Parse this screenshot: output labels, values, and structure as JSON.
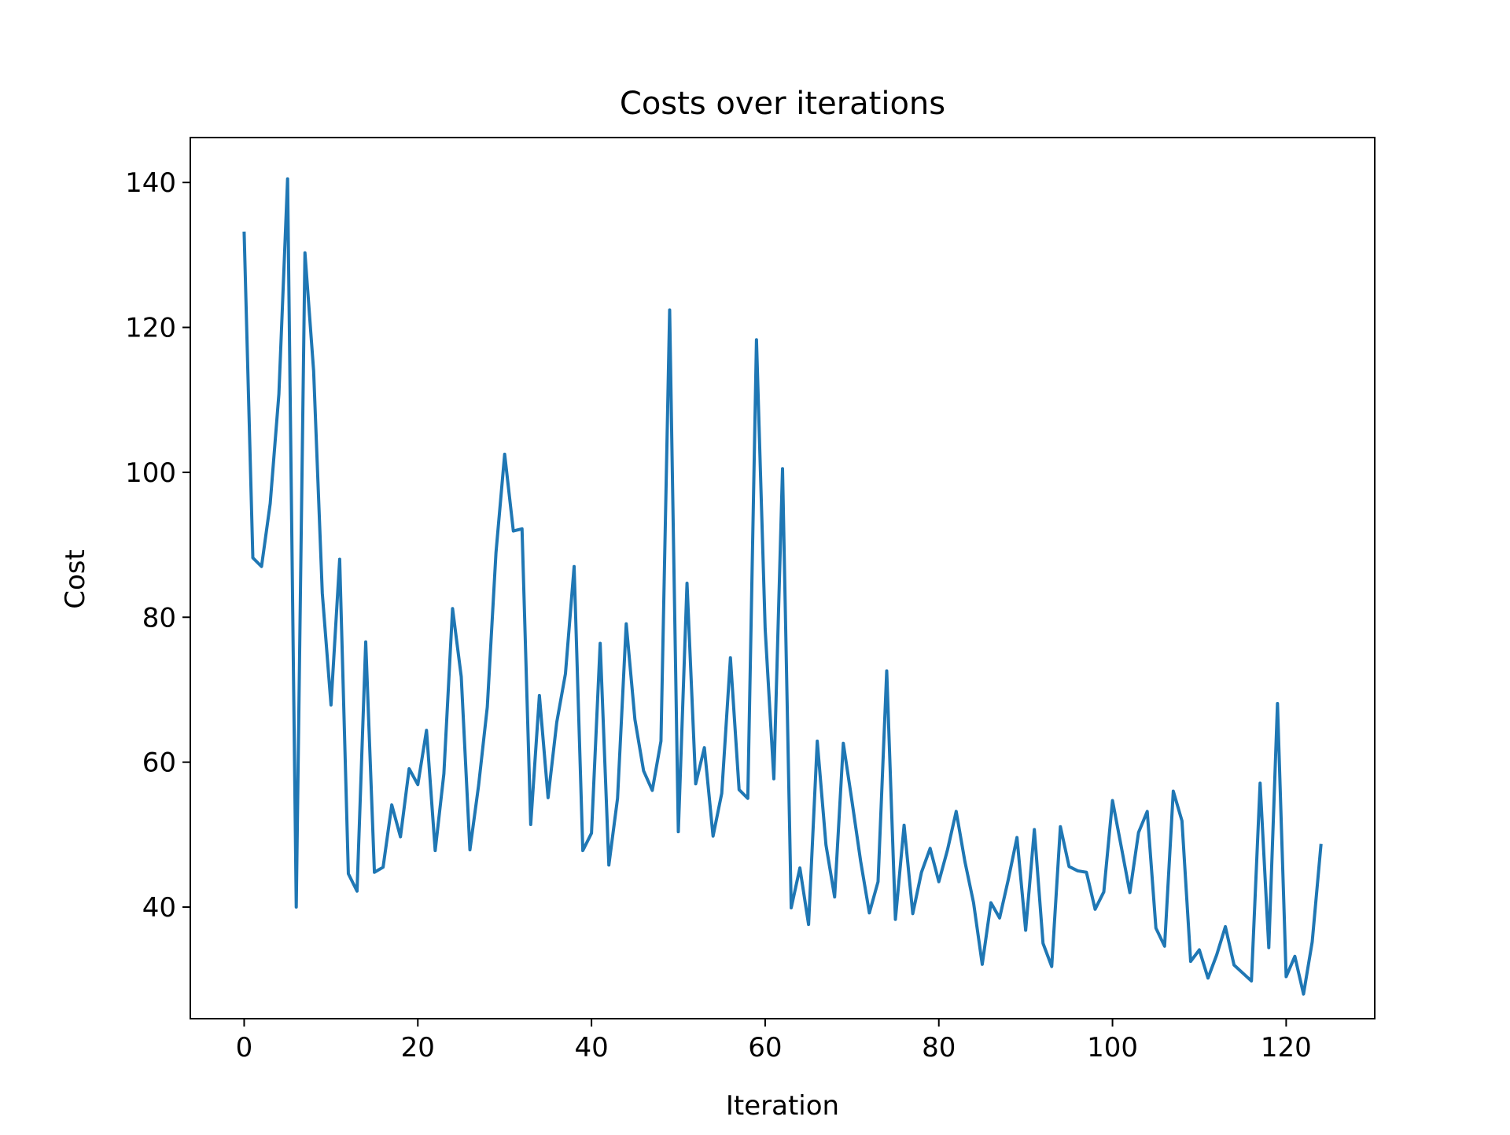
{
  "chart_data": {
    "type": "line",
    "title": "Costs over iterations",
    "xlabel": "Iteration",
    "ylabel": "Cost",
    "xlim": [
      -6.2,
      130.2
    ],
    "ylim": [
      24.6,
      146.2
    ],
    "xticks": [
      0,
      20,
      40,
      60,
      80,
      100,
      120
    ],
    "yticks": [
      40,
      60,
      80,
      100,
      120,
      140
    ],
    "grid": false,
    "legend": "none",
    "series": [
      {
        "color": "#1f77b4",
        "x": [
          0,
          1,
          2,
          3,
          4,
          5,
          6,
          7,
          8,
          9,
          10,
          11,
          12,
          13,
          14,
          15,
          16,
          17,
          18,
          19,
          20,
          21,
          22,
          23,
          24,
          25,
          26,
          27,
          28,
          29,
          30,
          31,
          32,
          33,
          34,
          35,
          36,
          37,
          38,
          39,
          40,
          41,
          42,
          43,
          44,
          45,
          46,
          47,
          48,
          49,
          50,
          51,
          52,
          53,
          54,
          55,
          56,
          57,
          58,
          59,
          60,
          61,
          62,
          63,
          64,
          65,
          66,
          67,
          68,
          69,
          70,
          71,
          72,
          73,
          74,
          75,
          76,
          77,
          78,
          79,
          80,
          81,
          82,
          83,
          84,
          85,
          86,
          87,
          88,
          89,
          90,
          91,
          92,
          93,
          94,
          95,
          96,
          97,
          98,
          99,
          100,
          101,
          102,
          103,
          104,
          105,
          106,
          107,
          108,
          109,
          110,
          111,
          112,
          113,
          114,
          115,
          116,
          117,
          118,
          119,
          120,
          121,
          122,
          123,
          124
        ],
        "values": [
          133,
          88.2,
          87,
          95.7,
          110.8,
          140.5,
          40,
          130.3,
          114,
          83.3,
          67.9,
          88,
          44.6,
          42.2,
          76.6,
          44.8,
          45.5,
          54.1,
          49.7,
          59.1,
          56.9,
          64.4,
          47.8,
          58.4,
          81.2,
          71.8,
          47.9,
          56.8,
          67.6,
          88.9,
          102.5,
          91.9,
          92.2,
          51.4,
          69.2,
          55.1,
          65.5,
          72.2,
          87,
          47.8,
          50.2,
          76.4,
          45.8,
          55,
          79.1,
          65.9,
          58.8,
          56.1,
          62.9,
          122.4,
          50.4,
          84.7,
          57,
          62,
          49.8,
          55.7,
          74.4,
          56.2,
          55,
          118.3,
          78.4,
          57.7,
          100.5,
          39.9,
          45.4,
          37.6,
          62.9,
          48.6,
          41.4,
          62.6,
          54.6,
          46.3,
          39.2,
          43.5,
          72.6,
          38.3,
          51.3,
          39.1,
          44.8,
          48.1,
          43.5,
          47.9,
          53.2,
          46.3,
          40.6,
          32.1,
          40.6,
          38.5,
          43.8,
          49.6,
          36.8,
          50.7,
          35,
          31.8,
          51.1,
          45.6,
          45,
          44.8,
          39.7,
          42.1,
          54.7,
          48.4,
          42,
          50.3,
          53.2,
          37.1,
          34.6,
          56,
          51.9,
          32.5,
          34.1,
          30.2,
          33.4,
          37.3,
          32,
          30.9,
          29.8,
          57.1,
          34.4,
          68.1,
          30.4,
          33.2,
          28,
          35.2,
          48.5
        ]
      }
    ]
  }
}
